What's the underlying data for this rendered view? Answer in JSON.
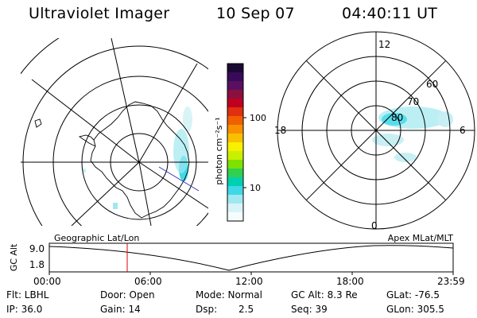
{
  "header": {
    "instrument": "Ultraviolet Imager",
    "date": "10 Sep 07",
    "time": "04:40:11 UT"
  },
  "colorbar": {
    "label": "photon cm⁻²s⁻¹",
    "ticks": [
      "100",
      "10"
    ],
    "colors": [
      "#1a0a33",
      "#3a0a5a",
      "#5a1060",
      "#8a1040",
      "#c00020",
      "#e03010",
      "#f06000",
      "#f89000",
      "#f8c000",
      "#f8f000",
      "#c8f000",
      "#80e000",
      "#30d050",
      "#00d0b0",
      "#40d8e8",
      "#a0e8f0",
      "#d8f4f8",
      "#f6fcfd"
    ]
  },
  "geo_map": {
    "caption": "Geographic Lat/Lon"
  },
  "mag_map": {
    "caption": "Apex MLat/MLT",
    "lat_labels": [
      "80",
      "70",
      "60"
    ],
    "mlt_labels": {
      "top": "12",
      "left": "18",
      "right": "6",
      "bottom": "0"
    }
  },
  "timeline": {
    "y_axis_label": "GC Alt",
    "y_ticks": [
      "9.0",
      "1.8"
    ],
    "x_ticks": [
      "00:00",
      "06:00",
      "12:00",
      "18:00",
      "23:59"
    ]
  },
  "info": {
    "row1": {
      "filter": "Flt: LBHL",
      "door": "Door: Open",
      "mode": "Mode: Normal",
      "gc_alt": "GC Alt: 8.3 Re",
      "glat": "GLat: -76.5"
    },
    "row2": {
      "ip": "IP: 36.0",
      "gain": "Gain: 14",
      "dsp_label": "Dsp:",
      "dsp_value": "2.5",
      "seq": "Seq: 39",
      "glon": "GLon: 305.5"
    }
  }
}
